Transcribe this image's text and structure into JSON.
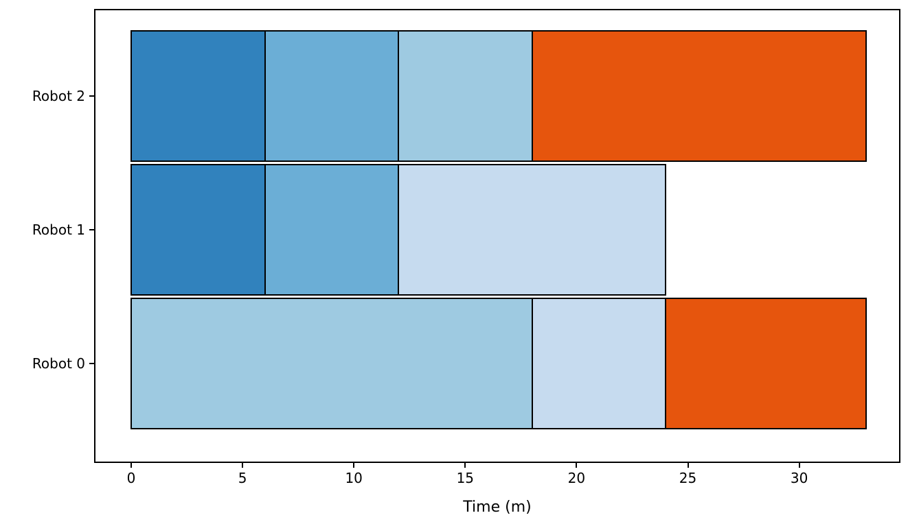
{
  "figure": {
    "background_color": "#ffffff",
    "axis_color": "#000000"
  },
  "chart_data": {
    "type": "bar",
    "subtype": "horizontal-stacked-gantt",
    "title": "",
    "xlabel": "Time (m)",
    "ylabel": "",
    "grid": false,
    "legend_position": "none",
    "xticks": [
      0,
      5,
      10,
      15,
      20,
      25,
      30
    ],
    "xlim": [
      -1.6,
      34.6
    ],
    "categories_top_to_bottom": [
      "Robot 2",
      "Robot 1",
      "Robot 0"
    ],
    "bar_edge_color": "#000000",
    "palette": {
      "dark_blue": "#3182bd",
      "medium_blue": "#6baed6",
      "light_blue": "#9ecae1",
      "pale_blue": "#c6dbef",
      "orange": "#e6550d"
    },
    "bars": [
      {
        "category": "Robot 2",
        "total": 33,
        "segments": [
          {
            "start": 0,
            "end": 6,
            "duration": 6,
            "color": "dark_blue"
          },
          {
            "start": 6,
            "end": 12,
            "duration": 6,
            "color": "medium_blue"
          },
          {
            "start": 12,
            "end": 18,
            "duration": 6,
            "color": "light_blue"
          },
          {
            "start": 18,
            "end": 33,
            "duration": 15,
            "color": "orange"
          }
        ]
      },
      {
        "category": "Robot 1",
        "total": 24,
        "segments": [
          {
            "start": 0,
            "end": 6,
            "duration": 6,
            "color": "dark_blue"
          },
          {
            "start": 6,
            "end": 12,
            "duration": 6,
            "color": "medium_blue"
          },
          {
            "start": 12,
            "end": 24,
            "duration": 12,
            "color": "pale_blue"
          }
        ]
      },
      {
        "category": "Robot 0",
        "total": 33,
        "segments": [
          {
            "start": 0,
            "end": 18,
            "duration": 18,
            "color": "light_blue"
          },
          {
            "start": 18,
            "end": 24,
            "duration": 6,
            "color": "pale_blue"
          },
          {
            "start": 24,
            "end": 33,
            "duration": 9,
            "color": "orange"
          }
        ]
      }
    ]
  }
}
